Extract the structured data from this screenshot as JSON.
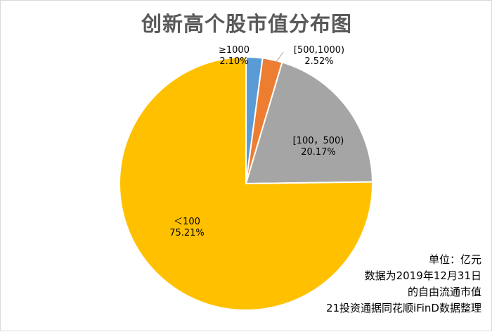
{
  "chart_data": {
    "type": "pie",
    "title": "创新高个股市值分布图",
    "slices": [
      {
        "category": "≥1000",
        "value_label": "2.10%",
        "value": 2.1,
        "color": "#5b9bd5"
      },
      {
        "category": "[500,1000)",
        "value_label": "2.52%",
        "value": 2.52,
        "color": "#ed7d31"
      },
      {
        "category": "[100，500)",
        "value_label": "20.17%",
        "value": 20.17,
        "color": "#a5a5a5"
      },
      {
        "category": "＜100",
        "value_label": "75.21%",
        "value": 75.21,
        "color": "#ffc000"
      }
    ],
    "legend": "none",
    "start_angle_deg": 0,
    "direction": "clockwise"
  },
  "note": {
    "unit": "单位：亿元",
    "line1": "数据为2019年12月31日",
    "line2": "的自由流通市值",
    "source": "21投资通据同花顺iFinD数据整理"
  }
}
